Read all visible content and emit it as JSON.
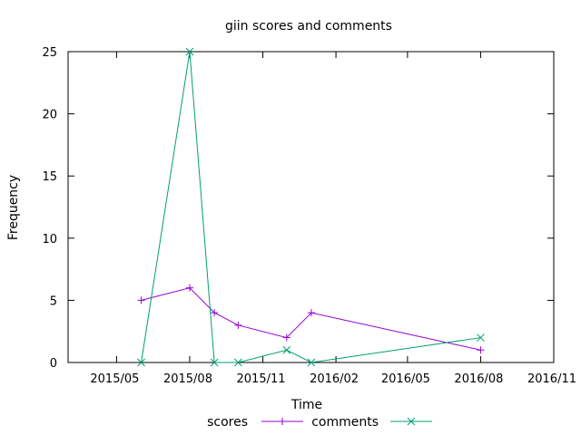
{
  "chart_data": {
    "type": "line",
    "title": "giin scores and comments",
    "xlabel": "Time",
    "ylabel": "Frequency",
    "x_format": "YYYY/MM",
    "xlim": [
      "2015-03-01",
      "2016-11-01"
    ],
    "ylim": [
      0,
      25
    ],
    "x_ticks": [
      "2015-05-01",
      "2015-08-01",
      "2015-11-01",
      "2016-02-01",
      "2016-05-01",
      "2016-08-01",
      "2016-11-01"
    ],
    "x_tick_labels": [
      "2015/05",
      "2015/08",
      "2015/11",
      "2016/02",
      "2016/05",
      "2016/08",
      "2016/11"
    ],
    "y_ticks": [
      0,
      5,
      10,
      15,
      20,
      25
    ],
    "y_tick_labels": [
      "0",
      "5",
      "10",
      "15",
      "20",
      "25"
    ],
    "grid": false,
    "legend_position": "bottom",
    "series": [
      {
        "name": "scores",
        "color": "#9400d3",
        "marker": "plus",
        "points": [
          {
            "x": "2015-06-01",
            "y": 5
          },
          {
            "x": "2015-08-01",
            "y": 6
          },
          {
            "x": "2015-09-01",
            "y": 4
          },
          {
            "x": "2015-10-01",
            "y": 3
          },
          {
            "x": "2015-12-01",
            "y": 2
          },
          {
            "x": "2016-01-01",
            "y": 4
          },
          {
            "x": "2016-08-01",
            "y": 1
          }
        ]
      },
      {
        "name": "comments",
        "color": "#009e73",
        "marker": "cross",
        "points": [
          {
            "x": "2015-06-01",
            "y": 0
          },
          {
            "x": "2015-08-01",
            "y": 25
          },
          {
            "x": "2015-09-01",
            "y": 0
          },
          {
            "x": "2015-10-01",
            "y": 0
          },
          {
            "x": "2015-12-01",
            "y": 1
          },
          {
            "x": "2016-01-01",
            "y": 0
          },
          {
            "x": "2016-08-01",
            "y": 2
          }
        ]
      }
    ]
  }
}
